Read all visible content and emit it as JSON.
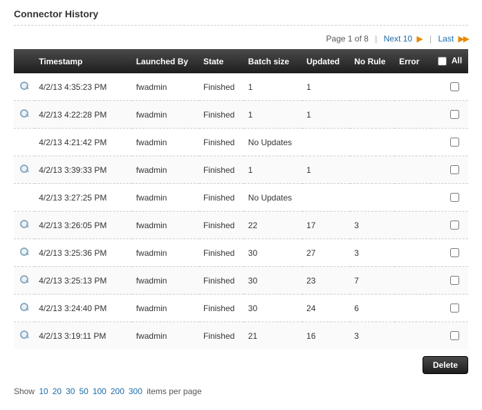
{
  "title": "Connector History",
  "pager": {
    "page_label": "Page 1 of 8",
    "next_label": "Next 10",
    "last_label": "Last"
  },
  "columns": {
    "timestamp": "Timestamp",
    "launched_by": "Launched By",
    "state": "State",
    "batch_size": "Batch size",
    "updated": "Updated",
    "no_rule": "No Rule",
    "error": "Error",
    "all": "All"
  },
  "rows": [
    {
      "icon": true,
      "timestamp": "4/2/13 4:35:23 PM",
      "launched_by": "fwadmin",
      "state": "Finished",
      "batch_size": "1",
      "updated": "1",
      "no_rule": "",
      "error": ""
    },
    {
      "icon": true,
      "timestamp": "4/2/13 4:22:28 PM",
      "launched_by": "fwadmin",
      "state": "Finished",
      "batch_size": "1",
      "updated": "1",
      "no_rule": "",
      "error": ""
    },
    {
      "icon": false,
      "timestamp": "4/2/13 4:21:42 PM",
      "launched_by": "fwadmin",
      "state": "Finished",
      "batch_size": "No Updates",
      "updated": "",
      "no_rule": "",
      "error": ""
    },
    {
      "icon": true,
      "timestamp": "4/2/13 3:39:33 PM",
      "launched_by": "fwadmin",
      "state": "Finished",
      "batch_size": "1",
      "updated": "1",
      "no_rule": "",
      "error": ""
    },
    {
      "icon": false,
      "timestamp": "4/2/13 3:27:25 PM",
      "launched_by": "fwadmin",
      "state": "Finished",
      "batch_size": "No Updates",
      "updated": "",
      "no_rule": "",
      "error": ""
    },
    {
      "icon": true,
      "timestamp": "4/2/13 3:26:05 PM",
      "launched_by": "fwadmin",
      "state": "Finished",
      "batch_size": "22",
      "updated": "17",
      "no_rule": "3",
      "error": ""
    },
    {
      "icon": true,
      "timestamp": "4/2/13 3:25:36 PM",
      "launched_by": "fwadmin",
      "state": "Finished",
      "batch_size": "30",
      "updated": "27",
      "no_rule": "3",
      "error": ""
    },
    {
      "icon": true,
      "timestamp": "4/2/13 3:25:13 PM",
      "launched_by": "fwadmin",
      "state": "Finished",
      "batch_size": "30",
      "updated": "23",
      "no_rule": "7",
      "error": ""
    },
    {
      "icon": true,
      "timestamp": "4/2/13 3:24:40 PM",
      "launched_by": "fwadmin",
      "state": "Finished",
      "batch_size": "30",
      "updated": "24",
      "no_rule": "6",
      "error": ""
    },
    {
      "icon": true,
      "timestamp": "4/2/13 3:19:11 PM",
      "launched_by": "fwadmin",
      "state": "Finished",
      "batch_size": "21",
      "updated": "16",
      "no_rule": "3",
      "error": ""
    }
  ],
  "footer": {
    "delete_label": "Delete",
    "show_label": "Show",
    "ipp_suffix": "items per page",
    "ipp_options": [
      "10",
      "20",
      "30",
      "50",
      "100",
      "200",
      "300"
    ]
  }
}
